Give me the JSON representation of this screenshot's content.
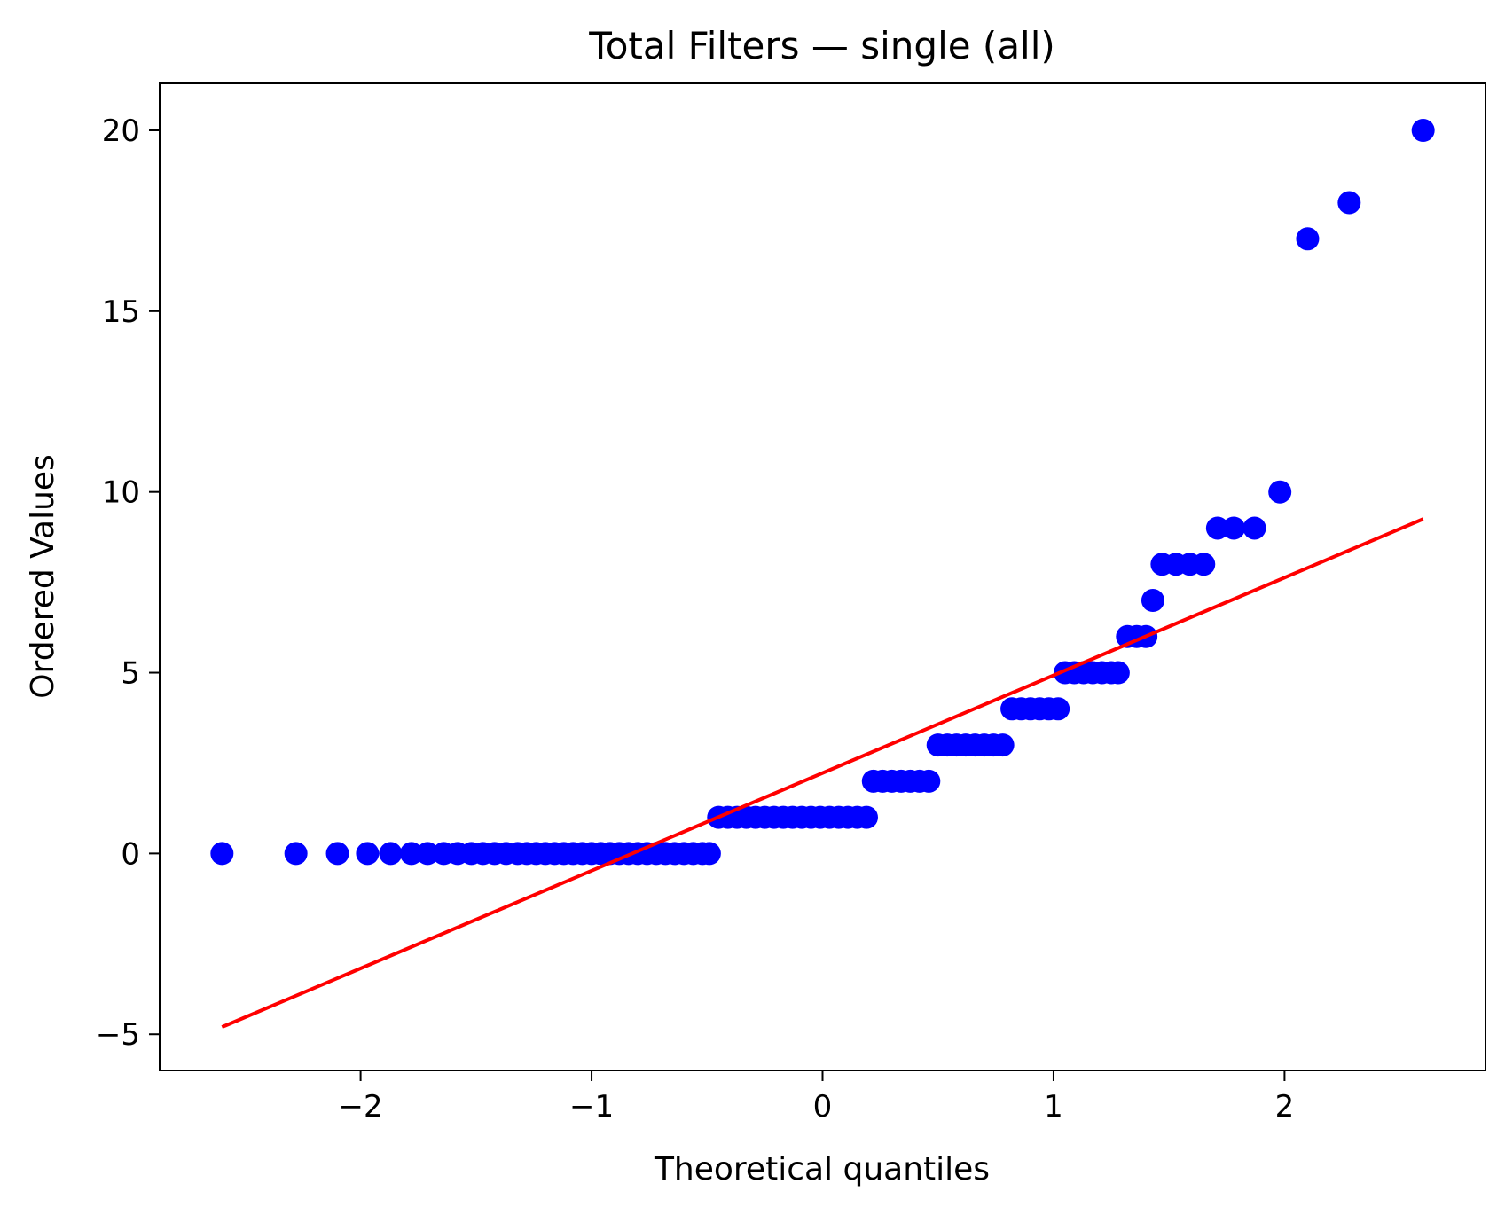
{
  "chart_data": {
    "type": "scatter",
    "title": "Total Filters — single (all)",
    "xlabel": "Theoretical quantiles",
    "ylabel": "Ordered Values",
    "xlim": [
      -2.87,
      2.87
    ],
    "ylim": [
      -6.0,
      21.3
    ],
    "xticks": [
      -2,
      -1,
      0,
      1,
      2
    ],
    "xtick_labels": [
      "−2",
      "−1",
      "0",
      "1",
      "2"
    ],
    "yticks": [
      -5,
      0,
      5,
      10,
      15,
      20
    ],
    "ytick_labels": [
      "−5",
      "0",
      "5",
      "10",
      "15",
      "20"
    ],
    "grid": false,
    "series": [
      {
        "kind": "points",
        "color": "#0000ff",
        "points": [
          [
            -2.6,
            0
          ],
          [
            -2.28,
            0
          ],
          [
            -2.1,
            0
          ],
          [
            -1.97,
            0
          ],
          [
            -1.87,
            0
          ],
          [
            -1.78,
            0
          ],
          [
            -1.71,
            0
          ],
          [
            -1.64,
            0
          ],
          [
            -1.58,
            0
          ],
          [
            -1.52,
            0
          ],
          [
            -1.47,
            0
          ],
          [
            -1.42,
            0
          ],
          [
            -1.37,
            0
          ],
          [
            -1.32,
            0
          ],
          [
            -1.28,
            0
          ],
          [
            -1.24,
            0
          ],
          [
            -1.2,
            0
          ],
          [
            -1.16,
            0
          ],
          [
            -1.12,
            0
          ],
          [
            -1.08,
            0
          ],
          [
            -1.04,
            0
          ],
          [
            -1.0,
            0
          ],
          [
            -0.96,
            0
          ],
          [
            -0.92,
            0
          ],
          [
            -0.88,
            0
          ],
          [
            -0.84,
            0
          ],
          [
            -0.8,
            0
          ],
          [
            -0.76,
            0
          ],
          [
            -0.72,
            0
          ],
          [
            -0.68,
            0
          ],
          [
            -0.64,
            0
          ],
          [
            -0.6,
            0
          ],
          [
            -0.56,
            0
          ],
          [
            -0.52,
            0
          ],
          [
            -0.49,
            0
          ],
          [
            -0.45,
            1
          ],
          [
            -0.41,
            1
          ],
          [
            -0.37,
            1
          ],
          [
            -0.33,
            1
          ],
          [
            -0.29,
            1
          ],
          [
            -0.25,
            1
          ],
          [
            -0.21,
            1
          ],
          [
            -0.17,
            1
          ],
          [
            -0.13,
            1
          ],
          [
            -0.09,
            1
          ],
          [
            -0.05,
            1
          ],
          [
            -0.01,
            1
          ],
          [
            0.03,
            1
          ],
          [
            0.07,
            1
          ],
          [
            0.11,
            1
          ],
          [
            0.15,
            1
          ],
          [
            0.19,
            1
          ],
          [
            0.22,
            2
          ],
          [
            0.26,
            2
          ],
          [
            0.3,
            2
          ],
          [
            0.34,
            2
          ],
          [
            0.38,
            2
          ],
          [
            0.42,
            2
          ],
          [
            0.46,
            2
          ],
          [
            0.5,
            3
          ],
          [
            0.54,
            3
          ],
          [
            0.58,
            3
          ],
          [
            0.62,
            3
          ],
          [
            0.66,
            3
          ],
          [
            0.7,
            3
          ],
          [
            0.74,
            3
          ],
          [
            0.78,
            3
          ],
          [
            0.82,
            4
          ],
          [
            0.86,
            4
          ],
          [
            0.9,
            4
          ],
          [
            0.94,
            4
          ],
          [
            0.98,
            4
          ],
          [
            1.02,
            4
          ],
          [
            1.05,
            5
          ],
          [
            1.09,
            5
          ],
          [
            1.13,
            5
          ],
          [
            1.17,
            5
          ],
          [
            1.21,
            5
          ],
          [
            1.25,
            5
          ],
          [
            1.28,
            5
          ],
          [
            1.32,
            6
          ],
          [
            1.36,
            6
          ],
          [
            1.4,
            6
          ],
          [
            1.43,
            7
          ],
          [
            1.47,
            8
          ],
          [
            1.53,
            8
          ],
          [
            1.59,
            8
          ],
          [
            1.65,
            8
          ],
          [
            1.71,
            9
          ],
          [
            1.78,
            9
          ],
          [
            1.87,
            9
          ],
          [
            1.98,
            10
          ],
          [
            2.1,
            17
          ],
          [
            2.28,
            18
          ],
          [
            2.6,
            20
          ]
        ]
      },
      {
        "kind": "fit-line",
        "color": "#ff0000",
        "points": [
          [
            -2.6,
            -4.8
          ],
          [
            2.6,
            9.25
          ]
        ]
      }
    ]
  }
}
